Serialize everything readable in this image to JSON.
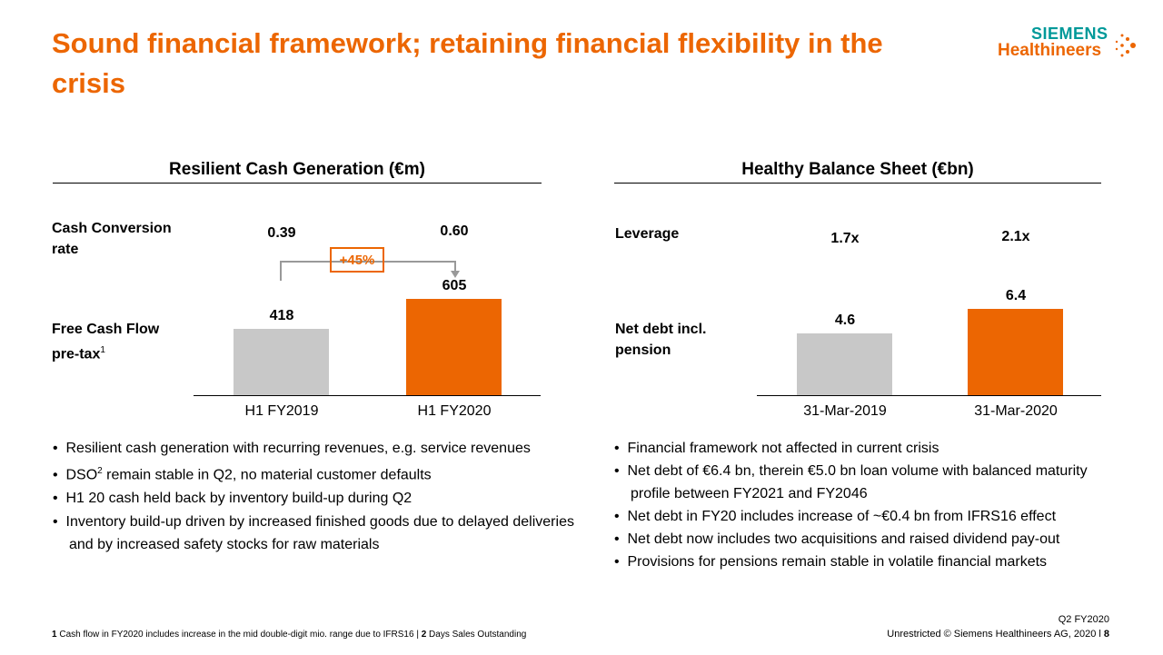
{
  "title": "Sound financial framework; retaining financial flexibility in the crisis",
  "logo": {
    "line1": "SIEMENS",
    "line2": "Healthineers"
  },
  "colors": {
    "accent": "#ec6602",
    "gray": "#c8c8c8",
    "brand_teal": "#009999"
  },
  "left": {
    "heading": "Resilient Cash Generation (€m)",
    "row1_label": "Cash Conversion rate",
    "row2_label": "Free Cash Flow pre-tax",
    "row2_sup": "1",
    "ratios": [
      "0.39",
      "0.60"
    ],
    "change_badge": "+45%",
    "bullets": [
      {
        "text": "Resilient cash generation with recurring revenues, e.g. service revenues"
      },
      {
        "pre": "DSO",
        "sup": "2",
        "text": " remain stable in Q2, no material customer defaults"
      },
      {
        "text": "H1 20 cash held back by inventory build-up during Q2"
      },
      {
        "text": "Inventory build-up driven by increased finished goods due to delayed deliveries and by increased safety stocks for raw materials"
      }
    ]
  },
  "right": {
    "heading": "Healthy Balance Sheet (€bn)",
    "row1_label": "Leverage",
    "row2_label": "Net debt incl. pension",
    "ratios": [
      "1.7x",
      "2.1x"
    ],
    "bullets": [
      "Financial framework not affected in current crisis",
      "Net debt of €6.4 bn, therein €5.0 bn loan volume with balanced maturity profile between FY2021 and FY2046",
      "Net debt in FY20 includes increase of ~€0.4 bn from IFRS16 effect",
      "Net debt now includes two acquisitions and raised dividend pay-out",
      "Provisions for pensions remain stable in volatile financial markets"
    ]
  },
  "chart_data": [
    {
      "type": "bar",
      "title": "Resilient Cash Generation (€m)",
      "categories": [
        "H1 FY2019",
        "H1 FY2020"
      ],
      "values": [
        418,
        605
      ],
      "labels": [
        "418",
        "605"
      ],
      "colors": [
        "#c8c8c8",
        "#ec6602"
      ]
    },
    {
      "type": "bar",
      "title": "Healthy Balance Sheet (€bn)",
      "categories": [
        "31-Mar-2019",
        "31-Mar-2020"
      ],
      "values": [
        4.6,
        6.4
      ],
      "labels": [
        "4.6",
        "6.4"
      ],
      "colors": [
        "#c8c8c8",
        "#ec6602"
      ]
    }
  ],
  "footer": {
    "note1_num": "1",
    "note1": " Cash flow in FY2020 includes increase in the mid double-digit mio. range due to IFRS16 |  ",
    "note2_num": "2",
    "note2": " Days Sales Outstanding",
    "period": "Q2 FY2020",
    "copyright": "Unrestricted © Siemens Healthineers AG, 2020 l ",
    "page": "8"
  }
}
